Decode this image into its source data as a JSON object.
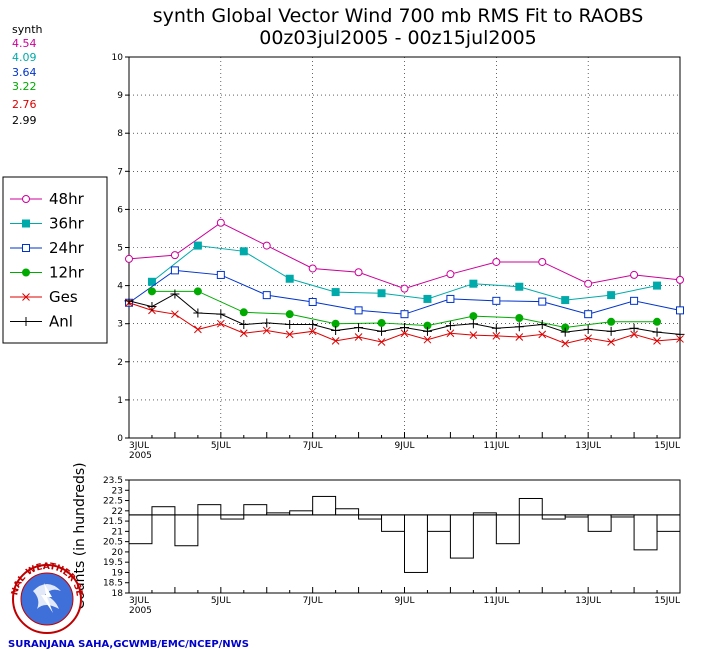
{
  "header": {
    "title_line1": "synth Global Vector Wind 700 mb RMS Fit to RAOBS",
    "title_line2": "00z03jul2005 - 00z15jul2005"
  },
  "stats": {
    "label": "synth",
    "values": [
      {
        "text": "4.54",
        "color": "#cc0099"
      },
      {
        "text": "4.09",
        "color": "#00aaaa"
      },
      {
        "text": "3.64",
        "color": "#0033cc"
      },
      {
        "text": "3.22",
        "color": "#00aa00"
      },
      {
        "text": "2.76",
        "color": "#dd0000"
      },
      {
        "text": "2.99",
        "color": "#000000"
      }
    ]
  },
  "credit": "SURANJANA SAHA,GCWMB/EMC/NCEP/NWS",
  "logo": {
    "text": "NATIONAL WEATHER SERVICE"
  },
  "chart_data": [
    {
      "type": "line",
      "x": [
        0,
        0.5,
        1,
        1.5,
        2,
        2.5,
        3,
        3.5,
        4,
        4.5,
        5,
        5.5,
        6,
        6.5,
        7,
        7.5,
        8,
        8.5,
        9,
        9.5,
        10,
        10.5,
        11,
        11.5,
        12
      ],
      "x_tick_values": [
        0,
        2,
        4,
        6,
        8,
        10,
        12
      ],
      "x_tick_labels": [
        "3JUL",
        "5JUL",
        "7JUL",
        "9JUL",
        "11JUL",
        "13JUL",
        "15JUL"
      ],
      "x_year_label": "2005",
      "ylim": [
        0,
        10
      ],
      "y_ticks": [
        0,
        1,
        2,
        3,
        4,
        5,
        6,
        7,
        8,
        9,
        10
      ],
      "grid": "dotted",
      "series": [
        {
          "name": "48hr",
          "color": "#cc0099",
          "marker": "circle-open",
          "values": [
            4.7,
            null,
            4.8,
            null,
            5.65,
            null,
            5.05,
            null,
            4.45,
            null,
            4.35,
            null,
            3.92,
            null,
            4.3,
            null,
            4.62,
            null,
            4.62,
            null,
            4.05,
            null,
            4.28,
            null,
            4.15
          ]
        },
        {
          "name": "36hr",
          "color": "#00aaaa",
          "marker": "square-filled",
          "values": [
            null,
            4.1,
            null,
            5.05,
            null,
            4.9,
            null,
            4.18,
            null,
            3.83,
            null,
            3.8,
            null,
            3.65,
            null,
            4.05,
            null,
            3.97,
            null,
            3.62,
            null,
            3.75,
            null,
            4.0,
            null
          ]
        },
        {
          "name": "24hr",
          "color": "#0033cc",
          "marker": "square-open",
          "values": [
            3.55,
            null,
            4.4,
            null,
            4.28,
            null,
            3.75,
            null,
            3.57,
            null,
            3.35,
            null,
            3.25,
            null,
            3.65,
            null,
            3.6,
            null,
            3.58,
            null,
            3.25,
            null,
            3.6,
            null,
            3.35
          ]
        },
        {
          "name": "12hr",
          "color": "#00aa00",
          "marker": "circle-filled",
          "values": [
            null,
            3.85,
            null,
            3.85,
            null,
            3.3,
            null,
            3.25,
            null,
            3.0,
            null,
            3.02,
            null,
            2.95,
            null,
            3.2,
            null,
            3.15,
            null,
            2.9,
            null,
            3.05,
            null,
            3.05,
            null
          ]
        },
        {
          "name": "Ges",
          "color": "#dd0000",
          "marker": "x",
          "values": [
            3.55,
            3.35,
            3.25,
            2.85,
            3.0,
            2.75,
            2.82,
            2.72,
            2.8,
            2.55,
            2.65,
            2.52,
            2.75,
            2.58,
            2.75,
            2.7,
            2.68,
            2.65,
            2.72,
            2.48,
            2.62,
            2.52,
            2.72,
            2.55,
            2.6
          ]
        },
        {
          "name": "Anl",
          "color": "#000000",
          "marker": "plus",
          "values": [
            3.6,
            3.45,
            3.78,
            3.28,
            3.25,
            2.98,
            3.02,
            2.98,
            2.98,
            2.82,
            2.9,
            2.8,
            2.9,
            2.8,
            2.95,
            3.0,
            2.88,
            2.92,
            2.98,
            2.78,
            2.85,
            2.8,
            2.88,
            2.78,
            2.72
          ]
        }
      ]
    },
    {
      "type": "bar",
      "ylabel": "Counts (in hundreds)",
      "ylim": [
        18,
        23.5
      ],
      "y_ticks": [
        18,
        18.5,
        19,
        19.5,
        20,
        20.5,
        21,
        21.5,
        22,
        22.5,
        23,
        23.5
      ],
      "y_tick_labels": [
        "18",
        "18.5",
        "19",
        "19.5",
        "20",
        "20.5",
        "21",
        "21.5",
        "22",
        "22.5",
        "23",
        "23.5"
      ],
      "x_tick_values": [
        0,
        2,
        4,
        6,
        8,
        10,
        12
      ],
      "x_tick_labels": [
        "3JUL",
        "5JUL",
        "7JUL",
        "9JUL",
        "11JUL",
        "13JUL",
        "15JUL"
      ],
      "x_year_label": "2005",
      "reference_value": 21.8,
      "values": [
        20.4,
        22.2,
        20.3,
        22.3,
        21.6,
        22.3,
        21.9,
        22.0,
        22.7,
        22.1,
        21.6,
        21.0,
        19.0,
        21.0,
        19.7,
        21.9,
        20.4,
        22.6,
        21.6,
        21.7,
        21.0,
        21.7,
        20.1,
        21.0
      ]
    }
  ]
}
